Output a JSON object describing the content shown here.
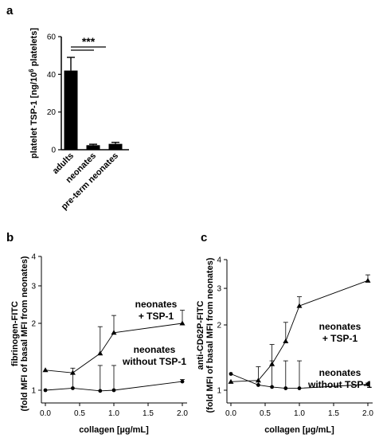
{
  "chart_data": [
    {
      "panel": "a",
      "type": "bar",
      "ylabel_prefix": "platelet TSP-1 [ng/10",
      "ylabel_sup": "6",
      "ylabel_suffix": " platelets]",
      "categories": [
        "adults",
        "neonates",
        "pre-term neonates"
      ],
      "values": [
        42,
        2.4,
        3.1
      ],
      "errors": [
        7,
        0.5,
        0.8
      ],
      "ylim": [
        0,
        60
      ],
      "yticks": [
        "0",
        "20",
        "40",
        "60"
      ],
      "significance": "***",
      "colors": {
        "bar": "#000000"
      }
    },
    {
      "panel": "b",
      "type": "line",
      "ylabel_line1": "fibrinogen-FITC",
      "ylabel_line2": "(fold MFI of basal MFI from neonates)",
      "xlabel": "collagen [µg/mL]",
      "xlim": [
        0,
        2
      ],
      "xticks": [
        "0.0",
        "0.5",
        "1.0",
        "1.5",
        "2.0"
      ],
      "ylim": [
        1,
        4
      ],
      "yticks": [
        "1",
        "2",
        "3",
        "4"
      ],
      "series": [
        {
          "name_line1": "neonates",
          "name_line2": "+ TSP-1",
          "marker": "triangle",
          "x": [
            0,
            0.4,
            0.8,
            1.0,
            2.0
          ],
          "y": [
            1.3,
            1.26,
            1.55,
            1.86,
            2.0
          ],
          "err": [
            0,
            0,
            0.4,
            0.35,
            0.35
          ]
        },
        {
          "name_line1": "neonates",
          "name_line2": "without TSP-1",
          "marker": "circle",
          "x": [
            0,
            0.4,
            0.8,
            1.0,
            2.0
          ],
          "y": [
            1.0,
            1.03,
            0.99,
            1.0,
            1.13
          ],
          "err": [
            0,
            0.3,
            0.38,
            0.37,
            0.03
          ]
        }
      ]
    },
    {
      "panel": "c",
      "type": "line",
      "ylabel_line1": "anti-CD62P-FITC",
      "ylabel_line2": "(fold MFI of basal MFI from neonates)",
      "xlabel": "collagen [µg/mL]",
      "xlim": [
        0,
        2
      ],
      "xticks": [
        "0.0",
        "0.5",
        "1.0",
        "1.5",
        "2.0"
      ],
      "ylim": [
        1,
        4
      ],
      "yticks": [
        "1",
        "2",
        "3",
        "4"
      ],
      "series": [
        {
          "name_line1": "neonates",
          "name_line2": "+ TSP-1",
          "marker": "triangle",
          "x": [
            0,
            0.4,
            0.6,
            0.8,
            1.0,
            2.0
          ],
          "y": [
            1.13,
            1.15,
            1.4,
            1.75,
            2.52,
            3.27
          ],
          "err": [
            0,
            0,
            0.3,
            0.32,
            0.25,
            0.2
          ]
        },
        {
          "name_line1": "neonates",
          "name_line2": "without TSP-1",
          "marker": "circle",
          "x": [
            0,
            0.4,
            0.6,
            0.8,
            1.0,
            2.0
          ],
          "y": [
            1.25,
            1.08,
            1.05,
            1.03,
            1.03,
            1.09
          ],
          "err": [
            0,
            0.28,
            0.4,
            0.42,
            0.42,
            0.02
          ]
        }
      ]
    }
  ]
}
